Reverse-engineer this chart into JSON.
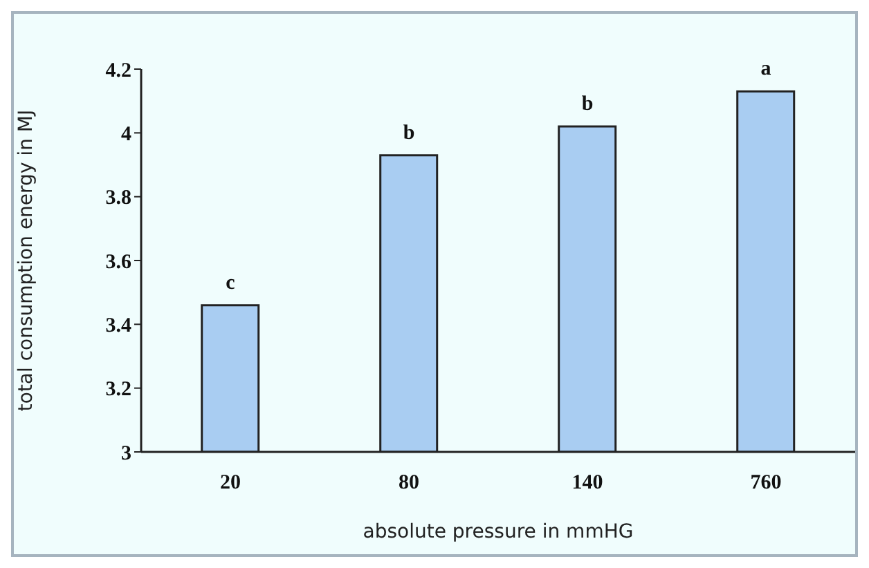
{
  "chart_data": {
    "type": "bar",
    "xlabel": "absolute pressure in mmHG",
    "ylabel": "total consumption energy in MJ",
    "categories": [
      "20",
      "80",
      "140",
      "760"
    ],
    "values": [
      3.46,
      3.93,
      4.02,
      4.13
    ],
    "color": "#a9cdf2",
    "ylim": [
      3,
      4.2
    ],
    "yticks": [
      3,
      3.2,
      3.4,
      3.6,
      3.8,
      4,
      4.2
    ],
    "grid": false,
    "legend": false,
    "annotations": [
      {
        "text": "c",
        "x": "20",
        "y": 3.46
      },
      {
        "text": "b",
        "x": "80",
        "y": 3.93
      },
      {
        "text": "b",
        "x": "140",
        "y": 4.02
      },
      {
        "text": "a",
        "x": "760",
        "y": 4.13
      }
    ]
  }
}
